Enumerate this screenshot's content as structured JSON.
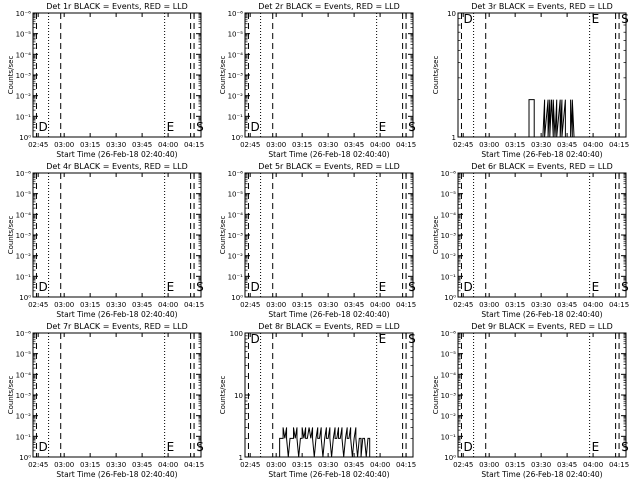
{
  "colors": {
    "events": "#000000",
    "lld": "#ff0000",
    "background": "#ffffff"
  },
  "chart_data": [
    {
      "type": "line",
      "title": "Det 1r BLACK = Events, RED = LLD",
      "xlabel": "Start Time (26-Feb-18 02:40:40)",
      "ylabel": "Counts/sec",
      "x_ticks": [
        "02:45",
        "03:00",
        "03:15",
        "03:30",
        "03:45",
        "04:00",
        "04:15"
      ],
      "y_scale": "log",
      "y_ticks": [
        "10⁰",
        "10⁻¹",
        "10⁻²",
        "10⁻³",
        "10⁻⁴",
        "10⁻⁵",
        "10⁻⁶"
      ],
      "markers": [
        {
          "time": "02:44",
          "style": "dashed",
          "label": "D"
        },
        {
          "time": "02:51",
          "style": "dotted",
          "label": ""
        },
        {
          "time": "02:58",
          "style": "dashed",
          "label": ""
        },
        {
          "time": "03:58",
          "style": "dotted",
          "label": "E"
        },
        {
          "time": "04:13",
          "style": "dashed",
          "label": ""
        },
        {
          "time": "04:15",
          "style": "dashed",
          "label": "S"
        }
      ],
      "series": []
    },
    {
      "type": "line",
      "title": "Det 2r BLACK = Events, RED = LLD",
      "xlabel": "Start Time (26-Feb-18 02:40:40)",
      "ylabel": "Counts/sec",
      "x_ticks": [
        "02:45",
        "03:00",
        "03:15",
        "03:30",
        "03:45",
        "04:00",
        "04:15"
      ],
      "y_scale": "log",
      "y_ticks": [
        "10⁰",
        "10⁻¹",
        "10⁻²",
        "10⁻³",
        "10⁻⁴",
        "10⁻⁵",
        "10⁻⁶"
      ],
      "markers": [
        {
          "time": "02:44",
          "style": "dashed",
          "label": "D"
        },
        {
          "time": "02:51",
          "style": "dotted",
          "label": ""
        },
        {
          "time": "02:58",
          "style": "dashed",
          "label": ""
        },
        {
          "time": "03:58",
          "style": "dotted",
          "label": "E"
        },
        {
          "time": "04:13",
          "style": "dashed",
          "label": ""
        },
        {
          "time": "04:15",
          "style": "dashed",
          "label": "S"
        }
      ],
      "series": []
    },
    {
      "type": "line",
      "title": "Det 3r BLACK = Events, RED = LLD",
      "xlabel": "Start Time (26-Feb-18 02:40:40)",
      "ylabel": "Counts/sec",
      "x_ticks": [
        "02:45",
        "03:00",
        "03:15",
        "03:30",
        "03:45",
        "04:00",
        "04:15"
      ],
      "y_scale": "log",
      "y_ticks": [
        "1",
        "10"
      ],
      "markers": [
        {
          "time": "02:44",
          "style": "dashed",
          "label": "D"
        },
        {
          "time": "02:51",
          "style": "dotted",
          "label": ""
        },
        {
          "time": "02:58",
          "style": "dashed",
          "label": ""
        },
        {
          "time": "03:58",
          "style": "dotted",
          "label": "E"
        },
        {
          "time": "04:13",
          "style": "dashed",
          "label": ""
        },
        {
          "time": "04:15",
          "style": "dashed",
          "label": "S"
        }
      ],
      "series": [
        {
          "points": [
            [
              "03:23",
              1
            ],
            [
              "03:23",
              2
            ],
            [
              "03:26",
              2
            ],
            [
              "03:26",
              1
            ],
            [
              "03:31",
              1
            ],
            [
              "03:32",
              2
            ],
            [
              "03:32",
              1
            ],
            [
              "03:34",
              2
            ],
            [
              "03:34",
              1
            ],
            [
              "03:35",
              2
            ],
            [
              "03:35",
              1
            ],
            [
              "03:36",
              2
            ],
            [
              "03:37",
              1
            ],
            [
              "03:37",
              2
            ],
            [
              "03:38",
              1
            ],
            [
              "03:39",
              2
            ],
            [
              "03:39",
              1
            ],
            [
              "03:41",
              2
            ],
            [
              "03:41",
              1
            ],
            [
              "03:42",
              2
            ],
            [
              "03:42",
              1
            ],
            [
              "03:44",
              2
            ],
            [
              "03:44",
              1
            ],
            [
              "03:47",
              1
            ],
            [
              "03:47",
              2
            ],
            [
              "03:48",
              1
            ],
            [
              "03:48",
              2
            ],
            [
              "03:49",
              1
            ]
          ]
        }
      ]
    },
    {
      "type": "line",
      "title": "Det 4r BLACK = Events, RED = LLD",
      "xlabel": "Start Time (26-Feb-18 02:40:40)",
      "ylabel": "Counts/sec",
      "x_ticks": [
        "02:45",
        "03:00",
        "03:15",
        "03:30",
        "03:45",
        "04:00",
        "04:15"
      ],
      "y_scale": "log",
      "y_ticks": [
        "10⁰",
        "10⁻¹",
        "10⁻²",
        "10⁻³",
        "10⁻⁴",
        "10⁻⁵",
        "10⁻⁶"
      ],
      "markers": [
        {
          "time": "02:44",
          "style": "dashed",
          "label": "D"
        },
        {
          "time": "02:51",
          "style": "dotted",
          "label": ""
        },
        {
          "time": "02:58",
          "style": "dashed",
          "label": ""
        },
        {
          "time": "03:58",
          "style": "dotted",
          "label": "E"
        },
        {
          "time": "04:13",
          "style": "dashed",
          "label": ""
        },
        {
          "time": "04:15",
          "style": "dashed",
          "label": "S"
        }
      ],
      "series": []
    },
    {
      "type": "line",
      "title": "Det 5r BLACK = Events, RED = LLD",
      "xlabel": "Start Time (26-Feb-18 02:40:40)",
      "ylabel": "Counts/sec",
      "x_ticks": [
        "02:45",
        "03:00",
        "03:15",
        "03:30",
        "03:45",
        "04:00",
        "04:15"
      ],
      "y_scale": "log",
      "y_ticks": [
        "10⁰",
        "10⁻¹",
        "10⁻²",
        "10⁻³",
        "10⁻⁴",
        "10⁻⁵",
        "10⁻⁶"
      ],
      "markers": [
        {
          "time": "02:44",
          "style": "dashed",
          "label": "D"
        },
        {
          "time": "02:51",
          "style": "dotted",
          "label": ""
        },
        {
          "time": "02:58",
          "style": "dashed",
          "label": ""
        },
        {
          "time": "03:58",
          "style": "dotted",
          "label": "E"
        },
        {
          "time": "04:13",
          "style": "dashed",
          "label": ""
        },
        {
          "time": "04:15",
          "style": "dashed",
          "label": "S"
        }
      ],
      "series": []
    },
    {
      "type": "line",
      "title": "Det 6r BLACK = Events, RED = LLD",
      "xlabel": "Start Time (26-Feb-18 02:40:40)",
      "ylabel": "Counts/sec",
      "x_ticks": [
        "02:45",
        "03:00",
        "03:15",
        "03:30",
        "03:45",
        "04:00",
        "04:15"
      ],
      "y_scale": "log",
      "y_ticks": [
        "10⁰",
        "10⁻¹",
        "10⁻²",
        "10⁻³",
        "10⁻⁴",
        "10⁻⁵",
        "10⁻⁶"
      ],
      "markers": [
        {
          "time": "02:44",
          "style": "dashed",
          "label": "D"
        },
        {
          "time": "02:51",
          "style": "dotted",
          "label": ""
        },
        {
          "time": "02:58",
          "style": "dashed",
          "label": ""
        },
        {
          "time": "03:58",
          "style": "dotted",
          "label": "E"
        },
        {
          "time": "04:13",
          "style": "dashed",
          "label": ""
        },
        {
          "time": "04:15",
          "style": "dashed",
          "label": "S"
        }
      ],
      "series": []
    },
    {
      "type": "line",
      "title": "Det 7r BLACK = Events, RED = LLD",
      "xlabel": "Start Time (26-Feb-18 02:40:40)",
      "ylabel": "Counts/sec",
      "x_ticks": [
        "02:45",
        "03:00",
        "03:15",
        "03:30",
        "03:45",
        "04:00",
        "04:15"
      ],
      "y_scale": "log",
      "y_ticks": [
        "10⁰",
        "10⁻¹",
        "10⁻²",
        "10⁻³",
        "10⁻⁴",
        "10⁻⁵",
        "10⁻⁶"
      ],
      "markers": [
        {
          "time": "02:44",
          "style": "dashed",
          "label": "D"
        },
        {
          "time": "02:51",
          "style": "dotted",
          "label": ""
        },
        {
          "time": "02:58",
          "style": "dashed",
          "label": ""
        },
        {
          "time": "03:58",
          "style": "dotted",
          "label": "E"
        },
        {
          "time": "04:13",
          "style": "dashed",
          "label": ""
        },
        {
          "time": "04:15",
          "style": "dashed",
          "label": "S"
        }
      ],
      "series": []
    },
    {
      "type": "line",
      "title": "Det 8r BLACK = Events, RED = LLD",
      "xlabel": "Start Time (26-Feb-18 02:40:40)",
      "ylabel": "Counts/sec",
      "x_ticks": [
        "02:45",
        "03:00",
        "03:15",
        "03:30",
        "03:45",
        "04:00",
        "04:15"
      ],
      "y_scale": "log",
      "y_ticks": [
        "1",
        "10",
        "100"
      ],
      "markers": [
        {
          "time": "02:44",
          "style": "dashed",
          "label": "D"
        },
        {
          "time": "02:51",
          "style": "dotted",
          "label": ""
        },
        {
          "time": "02:58",
          "style": "dashed",
          "label": ""
        },
        {
          "time": "03:58",
          "style": "dotted",
          "label": "E"
        },
        {
          "time": "04:13",
          "style": "dashed",
          "label": ""
        },
        {
          "time": "04:15",
          "style": "dashed",
          "label": "S"
        }
      ],
      "series": [
        {
          "points": [
            [
              "03:02",
              1
            ],
            [
              "03:02",
              2
            ],
            [
              "03:04",
              2
            ],
            [
              "03:04",
              3
            ],
            [
              "03:05",
              2
            ],
            [
              "03:06",
              3
            ],
            [
              "03:06",
              2
            ],
            [
              "03:07",
              1
            ],
            [
              "03:08",
              2
            ],
            [
              "03:10",
              2
            ],
            [
              "03:10",
              3
            ],
            [
              "03:11",
              2
            ],
            [
              "03:12",
              3
            ],
            [
              "03:12",
              2
            ],
            [
              "03:13",
              1
            ],
            [
              "03:14",
              2
            ],
            [
              "03:15",
              2
            ],
            [
              "03:15",
              3
            ],
            [
              "03:16",
              2
            ],
            [
              "03:17",
              3
            ],
            [
              "03:17",
              2
            ],
            [
              "03:18",
              2
            ],
            [
              "03:19",
              3
            ],
            [
              "03:20",
              2
            ],
            [
              "03:21",
              3
            ],
            [
              "03:21",
              2
            ],
            [
              "03:22",
              1
            ],
            [
              "03:23",
              2
            ],
            [
              "03:24",
              3
            ],
            [
              "03:24",
              2
            ],
            [
              "03:25",
              2
            ],
            [
              "03:26",
              3
            ],
            [
              "03:26",
              2
            ],
            [
              "03:27",
              1
            ],
            [
              "03:28",
              2
            ],
            [
              "03:29",
              3
            ],
            [
              "03:29",
              2
            ],
            [
              "03:30",
              2
            ],
            [
              "03:31",
              3
            ],
            [
              "03:31",
              2
            ],
            [
              "03:32",
              1
            ],
            [
              "03:33",
              2
            ],
            [
              "03:34",
              3
            ],
            [
              "03:34",
              2
            ],
            [
              "03:35",
              2
            ],
            [
              "03:36",
              3
            ],
            [
              "03:36",
              2
            ],
            [
              "03:37",
              2
            ],
            [
              "03:38",
              3
            ],
            [
              "03:38",
              2
            ],
            [
              "03:39",
              1
            ],
            [
              "03:40",
              2
            ],
            [
              "03:41",
              3
            ],
            [
              "03:41",
              2
            ],
            [
              "03:42",
              2
            ],
            [
              "03:43",
              3
            ],
            [
              "03:43",
              2
            ],
            [
              "03:44",
              1
            ],
            [
              "03:45",
              2
            ],
            [
              "03:46",
              3
            ],
            [
              "03:46",
              2
            ],
            [
              "03:47",
              1
            ],
            [
              "03:48",
              2
            ],
            [
              "03:49",
              2
            ],
            [
              "03:49",
              1
            ],
            [
              "03:50",
              2
            ],
            [
              "03:51",
              2
            ],
            [
              "03:52",
              1
            ],
            [
              "03:53",
              2
            ],
            [
              "03:54",
              2
            ],
            [
              "03:54",
              1
            ]
          ]
        }
      ]
    },
    {
      "type": "line",
      "title": "Det 9r BLACK = Events, RED = LLD",
      "xlabel": "Start Time (26-Feb-18 02:40:40)",
      "ylabel": "Counts/sec",
      "x_ticks": [
        "02:45",
        "03:00",
        "03:15",
        "03:30",
        "03:45",
        "04:00",
        "04:15"
      ],
      "y_scale": "log",
      "y_ticks": [
        "10⁰",
        "10⁻¹",
        "10⁻²",
        "10⁻³",
        "10⁻⁴",
        "10⁻⁵",
        "10⁻⁶"
      ],
      "markers": [
        {
          "time": "02:44",
          "style": "dashed",
          "label": "D"
        },
        {
          "time": "02:51",
          "style": "dotted",
          "label": ""
        },
        {
          "time": "02:58",
          "style": "dashed",
          "label": ""
        },
        {
          "time": "03:58",
          "style": "dotted",
          "label": "E"
        },
        {
          "time": "04:13",
          "style": "dashed",
          "label": ""
        },
        {
          "time": "04:15",
          "style": "dashed",
          "label": "S"
        }
      ],
      "series": []
    }
  ]
}
